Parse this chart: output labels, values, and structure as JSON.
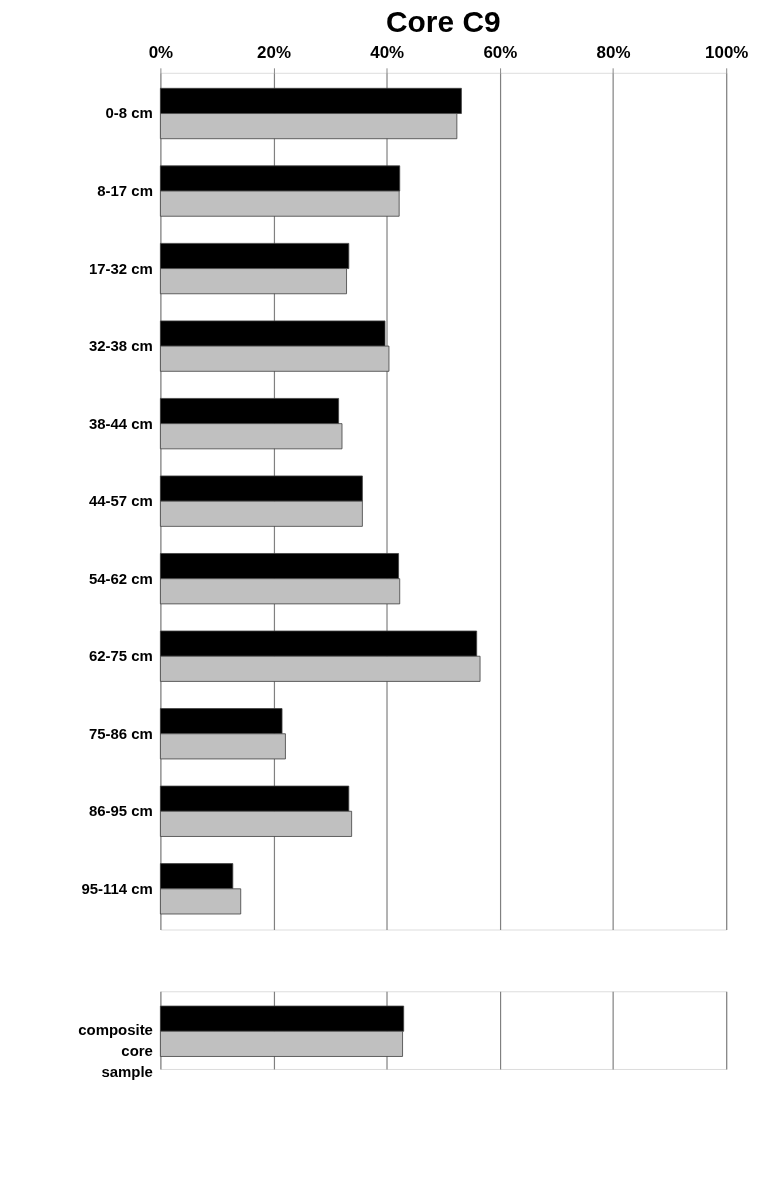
{
  "chart_data": [
    {
      "type": "bar",
      "orientation": "horizontal",
      "title": "Core C9",
      "categories": [
        "0-8 cm",
        "8-17 cm",
        "17-32 cm",
        "32-38 cm",
        "38-44 cm",
        "44-57 cm",
        "54-62 cm",
        "62-75 cm",
        "75-86 cm",
        "86-95 cm",
        "95-114 cm"
      ],
      "series": [
        {
          "color": "#000000",
          "values": [
            53.2,
            42.3,
            33.3,
            39.7,
            31.5,
            35.7,
            42.1,
            55.9,
            21.5,
            33.3,
            12.8
          ]
        },
        {
          "color": "#c0c0c0",
          "values": [
            52.4,
            42.2,
            32.9,
            40.4,
            32.1,
            35.7,
            42.3,
            56.5,
            22.1,
            33.8,
            14.2
          ]
        }
      ],
      "xlim": [
        0,
        100
      ],
      "xticks": [
        {
          "value": 0,
          "label": "0%"
        },
        {
          "value": 20,
          "label": "20%"
        },
        {
          "value": 40,
          "label": "40%"
        },
        {
          "value": 60,
          "label": "60%"
        },
        {
          "value": 80,
          "label": "80%"
        },
        {
          "value": 100,
          "label": "100%"
        }
      ],
      "grid": "x",
      "legend": false
    },
    {
      "type": "bar",
      "orientation": "horizontal",
      "categories": [
        "composite core sample"
      ],
      "series": [
        {
          "color": "#000000",
          "values": [
            43.0
          ]
        },
        {
          "color": "#c0c0c0",
          "values": [
            42.8
          ]
        }
      ],
      "xlim": [
        0,
        100
      ],
      "xticks": [
        0,
        20,
        40,
        60,
        80,
        100
      ],
      "grid": "x",
      "legend": false,
      "tick_labels": "y"
    }
  ]
}
